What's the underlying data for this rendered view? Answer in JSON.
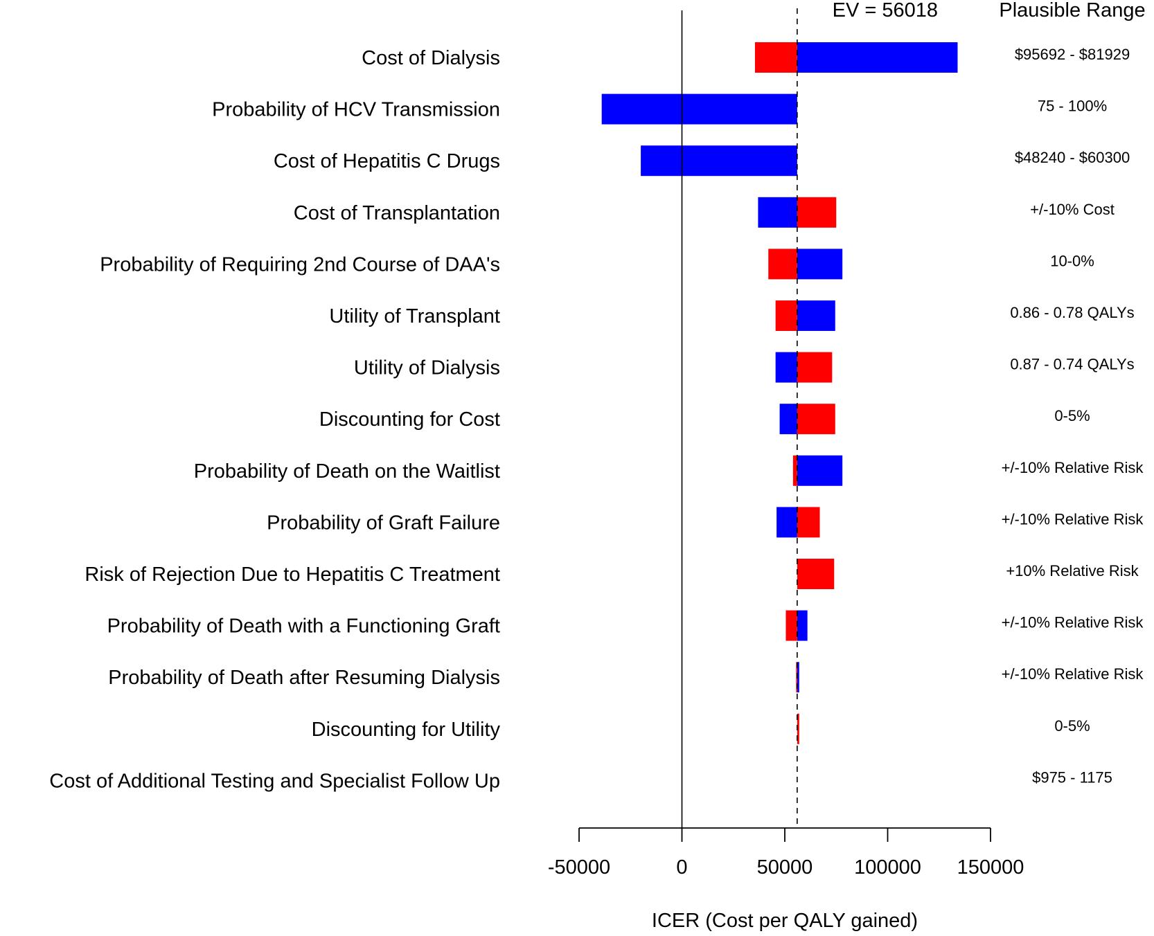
{
  "chart_data": {
    "type": "bar",
    "orientation": "horizontal",
    "subtype": "tornado",
    "title": "",
    "xlabel": "ICER (Cost per QALY gained)",
    "ylabel": "",
    "xlim": [
      -50000,
      150000
    ],
    "xticks": [
      -50000,
      0,
      50000,
      100000,
      150000
    ],
    "xtick_labels": [
      "-50000",
      "0",
      "50000",
      "100000",
      "150000"
    ],
    "reference_line": {
      "value": 56018,
      "label": "EV = 56018",
      "style": "dashed"
    },
    "zero_line": 0,
    "range_header": "Plausible Range",
    "colors": {
      "blue": "#0000ff",
      "red": "#ff0000"
    },
    "grid": false,
    "legend": "none",
    "categories": [
      "Cost of Dialysis",
      "Probability of HCV Transmission",
      "Cost of Hepatitis C Drugs",
      "Cost of Transplantation",
      "Probability of Requiring 2nd Course of DAA's",
      "Utility of Transplant",
      "Utility of Dialysis",
      "Discounting for Cost",
      "Probability of Death on the Waitlist",
      "Probability of Graft Failure",
      "Risk of Rejection Due to Hepatitis C Treatment",
      "Probability of Death with a Functioning Graft",
      "Probability of Death after Resuming Dialysis",
      "Discounting for Utility",
      "Cost of Additional Testing and Specialist Follow Up"
    ],
    "ranges": [
      "$95692 - $81929",
      "75 - 100%",
      "$48240 - $60300",
      "+/-10% Cost",
      "10-0%",
      "0.86 - 0.78 QALYs",
      "0.87 - 0.74 QALYs",
      "0-5%",
      "+/-10% Relative Risk",
      "+/-10% Relative Risk",
      "+10% Relative Risk",
      "+/-10% Relative Risk",
      "+/-10% Relative Risk",
      "0-5%",
      "$975 - 1175"
    ],
    "series": [
      {
        "color": "blue",
        "values": [
          134000,
          -39000,
          -20000,
          37000,
          78000,
          74500,
          45500,
          47500,
          78000,
          46000,
          56018,
          61000,
          57000,
          56018,
          56018
        ]
      },
      {
        "color": "red",
        "values": [
          35500,
          56018,
          56018,
          75000,
          42000,
          45500,
          73000,
          74500,
          54000,
          67000,
          74000,
          50500,
          55500,
          57000,
          56018
        ]
      }
    ]
  }
}
